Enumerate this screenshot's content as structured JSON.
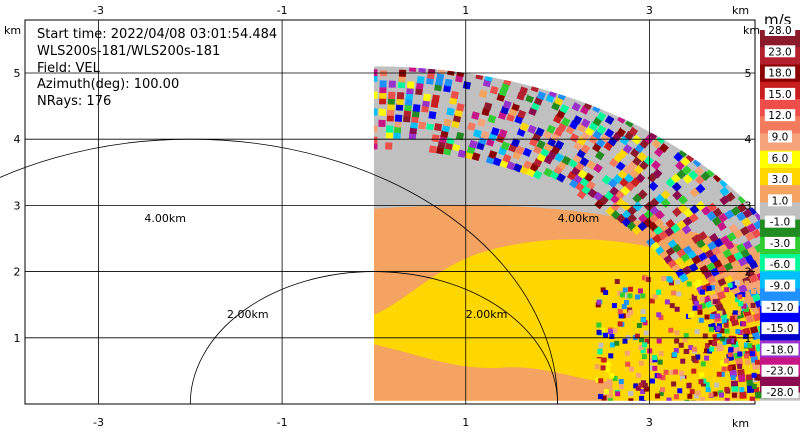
{
  "info": {
    "start_time": "Start time: 2022/04/08 03:01:54.484",
    "instrument": "WLS200s-181/WLS200s-181",
    "field": "Field: VEL",
    "azimuth": "Azimuth(deg): 100.00",
    "nrays": "NRays: 176"
  },
  "chart_data": {
    "type": "heatmap",
    "title": "",
    "x_axis": {
      "unit_label": "km",
      "range": [
        -3.8,
        4.15
      ],
      "ticks": [
        -3,
        -1,
        1,
        3
      ],
      "tick_labels": [
        "-3",
        "-1",
        "1",
        "3"
      ]
    },
    "y_axis": {
      "unit_label": "km",
      "range": [
        0,
        5.8
      ],
      "ticks": [
        1,
        2,
        3,
        4,
        5
      ],
      "tick_labels": [
        "1",
        "2",
        "3",
        "4",
        "5"
      ]
    },
    "grid": true,
    "range_rings": [
      {
        "center_x_km": 0,
        "center_y_km": 0,
        "radius_km": 2,
        "label": "2.00km"
      },
      {
        "center_x_km": -2,
        "center_y_km": 0,
        "radius_km": 4,
        "label": "4.00km"
      }
    ],
    "ring_labels_extra": [
      "2.00km",
      "4.00km"
    ],
    "sector": {
      "x_min_km": 0,
      "y_min_km": 0.05,
      "max_range_km": 5.05
    },
    "regions": [
      {
        "name": "gray",
        "value_range": [
          -1.0,
          1.0
        ]
      },
      {
        "name": "orange",
        "value_range": [
          1.0,
          3.0
        ]
      },
      {
        "name": "yellow",
        "value_range": [
          3.0,
          6.0
        ]
      }
    ],
    "colorbar": {
      "unit": "m/s",
      "labels": [
        "28.0",
        "23.0",
        "18.0",
        "15.0",
        "12.0",
        "9.0",
        "6.0",
        "3.0",
        "1.0",
        "-1.0",
        "-3.0",
        "-6.0",
        "-9.0",
        "-12.0",
        "-15.0",
        "-18.0",
        "-23.0",
        "-28.0"
      ],
      "colors": [
        "#8b1a2b",
        "#b4202e",
        "#8b0000",
        "#c81e1e",
        "#ee4e4a",
        "#f47a5e",
        "#f7a37a",
        "#ffff00",
        "#ffd700",
        "#f4a460",
        "#c0c0c0",
        "#228b22",
        "#32cd32",
        "#00fa9a",
        "#00bfff",
        "#1e90ff",
        "#0000ff",
        "#0000cd",
        "#9932cc",
        "#c71585",
        "#8b0a50"
      ]
    }
  }
}
